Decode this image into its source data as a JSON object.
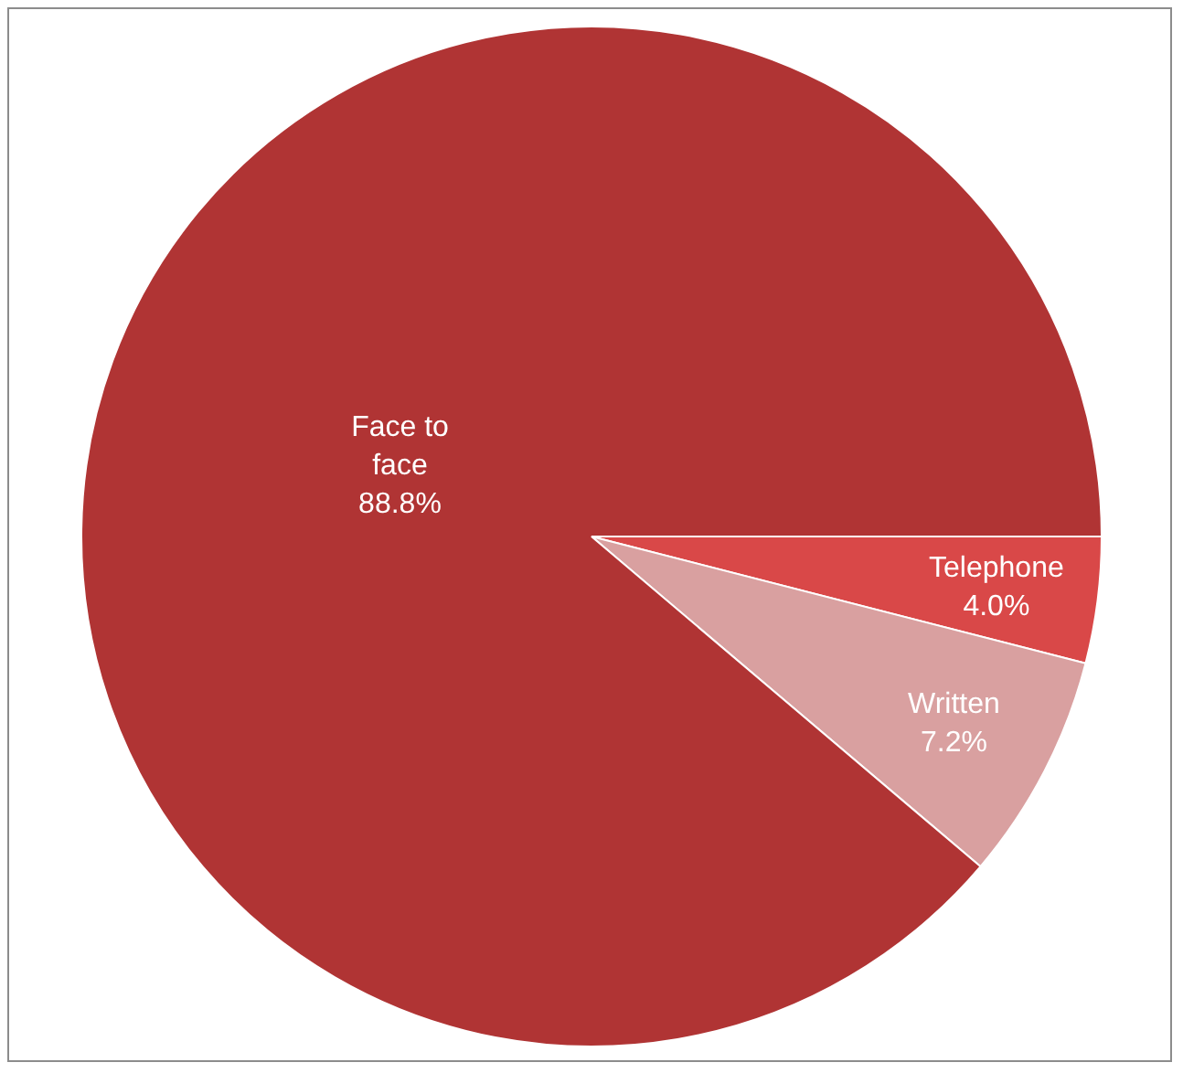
{
  "chart_data": {
    "type": "pie",
    "categories": [
      "Telephone",
      "Written",
      "Face to face"
    ],
    "values": [
      4.0,
      7.2,
      88.8
    ],
    "value_labels": [
      "4.0%",
      "7.2%",
      "88.8%"
    ],
    "colors": [
      "#d94848",
      "#d9a0a0",
      "#b03434"
    ],
    "legend": false
  }
}
